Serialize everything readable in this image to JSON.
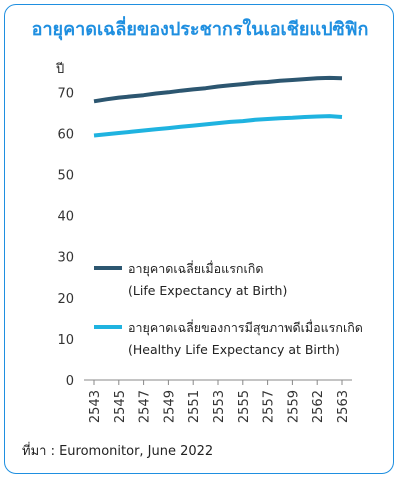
{
  "title": "อายุคาดเฉลี่ยของประชากรในเอเชียแปซิฟิก",
  "source": "ที่มา : Euromonitor, June 2022",
  "chart_data": {
    "type": "line",
    "ylabel": "ปี",
    "ylim": [
      0,
      75
    ],
    "yticks": [
      0,
      10,
      20,
      30,
      40,
      50,
      60,
      70
    ],
    "x": [
      2543,
      2544,
      2545,
      2546,
      2547,
      2548,
      2549,
      2550,
      2551,
      2552,
      2553,
      2554,
      2555,
      2556,
      2557,
      2558,
      2559,
      2560,
      2561,
      2562,
      2563
    ],
    "xticks": [
      "2543",
      "2545",
      "2547",
      "2549",
      "2551",
      "2553",
      "2555",
      "2557",
      "2559",
      "2562",
      "2563"
    ],
    "grid": false,
    "legend": "inside-lower-middle",
    "series": [
      {
        "name": "อายุคาดเฉลี่ยเมื่อแรกเกิด",
        "name2": "(Life Expectancy at Birth)",
        "color": "#2c5670",
        "values": [
          67.8,
          68.3,
          68.7,
          69.0,
          69.3,
          69.7,
          70.0,
          70.4,
          70.7,
          71.0,
          71.4,
          71.7,
          72.0,
          72.3,
          72.5,
          72.8,
          73.0,
          73.2,
          73.4,
          73.5,
          73.4
        ]
      },
      {
        "name": "อายุคาดเฉลี่ยของการมีสุขภาพดีเมื่อแรกเกิด",
        "name2": "(Healthy Life Expectancy at Birth)",
        "color": "#1fb3e0",
        "values": [
          59.5,
          59.8,
          60.1,
          60.4,
          60.7,
          61.0,
          61.3,
          61.6,
          61.9,
          62.2,
          62.5,
          62.8,
          63.0,
          63.3,
          63.5,
          63.7,
          63.8,
          64.0,
          64.1,
          64.2,
          64.0
        ]
      }
    ]
  }
}
